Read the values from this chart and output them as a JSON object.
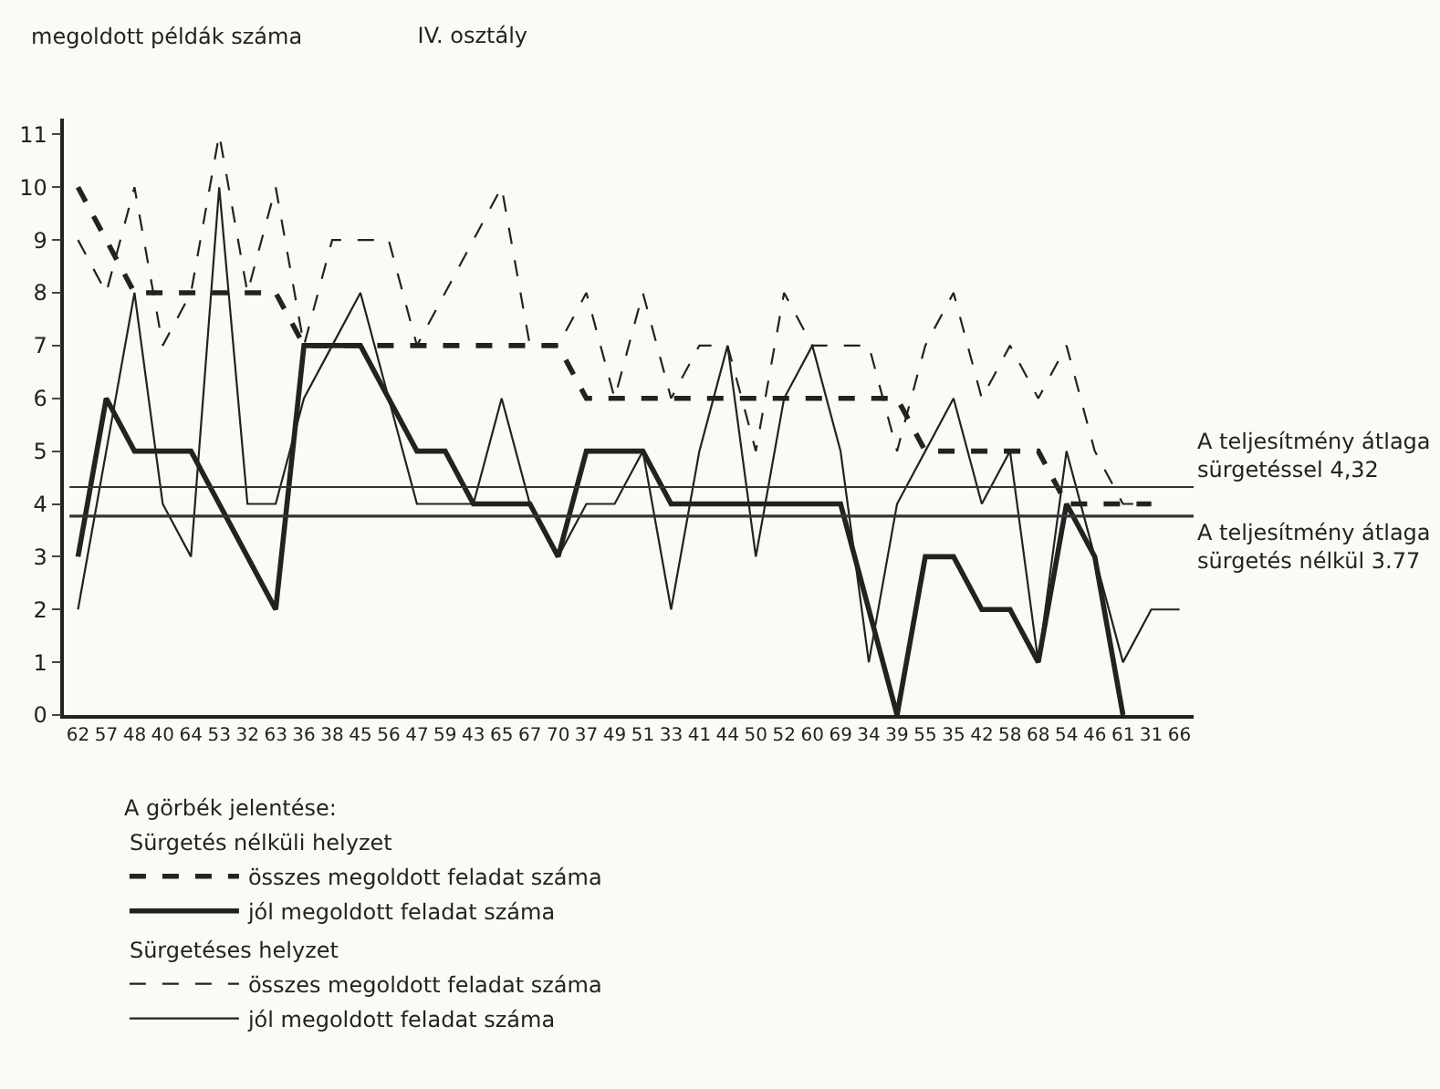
{
  "chart_data": {
    "type": "line",
    "title": "IV. osztály",
    "ylabel": "megoldott példák száma",
    "legend_title": "A görbék jelentése:",
    "annotations": [
      "Sürgetés nélküli helyzet",
      "Sürgetéses helyzet"
    ],
    "categories": [
      "62",
      "57",
      "48",
      "40",
      "64",
      "53",
      "32",
      "63",
      "36",
      "38",
      "45",
      "56",
      "47",
      "59",
      "43",
      "65",
      "67",
      "70",
      "37",
      "49",
      "51",
      "33",
      "41",
      "44",
      "50",
      "52",
      "60",
      "69",
      "34",
      "39",
      "55",
      "35",
      "42",
      "58",
      "68",
      "54",
      "46",
      "61",
      "31",
      "66"
    ],
    "series": [
      {
        "name": "összes megoldott feladat száma",
        "color": "#222222",
        "line_style": "dashed",
        "values": [
          10,
          9,
          8,
          8,
          8,
          8,
          8,
          8,
          7,
          7,
          7,
          7,
          7,
          7,
          7,
          7,
          7,
          7,
          6,
          6,
          6,
          6,
          6,
          6,
          6,
          6,
          6,
          6,
          6,
          6,
          5,
          5,
          5,
          5,
          5,
          4,
          4,
          4,
          4,
          null
        ]
      },
      {
        "name": "jól megoldott feladat száma",
        "color": "#222222",
        "line_style": "solid",
        "values": [
          3,
          6,
          5,
          5,
          5,
          4,
          3,
          2,
          7,
          7,
          7,
          6,
          5,
          5,
          4,
          4,
          4,
          3,
          5,
          5,
          5,
          4,
          4,
          4,
          4,
          4,
          4,
          4,
          2,
          0,
          3,
          3,
          2,
          2,
          1,
          4,
          3,
          0,
          null,
          null
        ]
      },
      {
        "name": "összes megoldott feladat száma",
        "color": "#222222",
        "line_style": "dashed",
        "values": [
          9,
          8,
          10,
          7,
          8,
          11,
          8,
          10,
          7,
          9,
          9,
          9,
          7,
          8,
          9,
          10,
          7,
          7,
          8,
          6,
          8,
          6,
          7,
          7,
          5,
          8,
          7,
          7,
          7,
          5,
          7,
          8,
          6,
          7,
          6,
          7,
          5,
          4,
          4,
          null
        ]
      },
      {
        "name": "jól megoldott feladat száma",
        "color": "#222222",
        "line_style": "solid",
        "values": [
          2,
          5,
          8,
          4,
          3,
          10,
          4,
          4,
          6,
          7,
          8,
          6,
          4,
          4,
          4,
          6,
          4,
          3,
          4,
          4,
          5,
          2,
          5,
          7,
          3,
          6,
          7,
          5,
          1,
          4,
          5,
          6,
          4,
          5,
          1,
          5,
          3,
          1,
          2,
          2
        ]
      }
    ],
    "ylim": [
      0,
      11.3
    ],
    "yticks": [
      0,
      1,
      2,
      3,
      4,
      5,
      6,
      7,
      8,
      9,
      10,
      11
    ],
    "grid": false,
    "legend": "bottom left",
    "marker": "none",
    "ref_lines": [
      {
        "axis": "y",
        "value": 4.32,
        "label": "A teljesítmény átlaga\nsürgetéssel 4,32",
        "line_style": "solid"
      },
      {
        "axis": "y",
        "value": 3.77,
        "label": "A teljesítmény átlaga\nsürgetés nélkül 3.77",
        "line_style": "solid"
      }
    ]
  }
}
